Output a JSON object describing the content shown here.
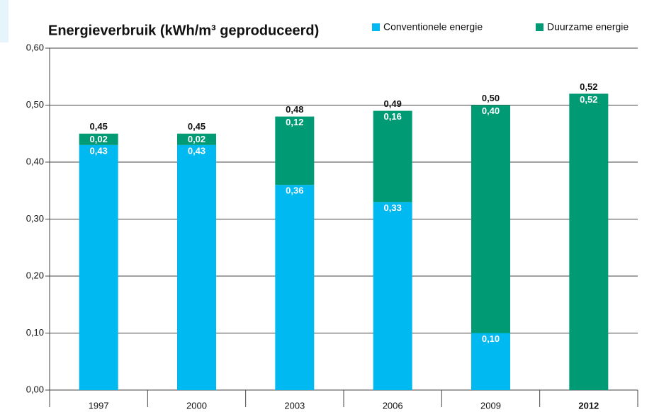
{
  "chart_data": {
    "type": "stacked_bar",
    "title": "Energieverbruik (kWh/m³ geproduceerd)",
    "categories": [
      "1997",
      "2000",
      "2003",
      "2006",
      "2009",
      "2012"
    ],
    "series": [
      {
        "name": "Conventionele energie",
        "color": "#00b9f0",
        "values": [
          0.43,
          0.43,
          0.36,
          0.33,
          0.1,
          0
        ],
        "value_labels": [
          "0,43",
          "0,43",
          "0,36",
          "0,33",
          "0,10",
          null
        ]
      },
      {
        "name": "Duurzame energie",
        "color": "#009a74",
        "values": [
          0.02,
          0.02,
          0.12,
          0.16,
          0.4,
          0.52
        ],
        "value_labels": [
          "0,02",
          "0,02",
          "0,12",
          "0,16",
          "0,40",
          "0,52"
        ]
      }
    ],
    "totals": [
      0.45,
      0.45,
      0.48,
      0.49,
      0.5,
      0.52
    ],
    "total_labels": [
      "0,45",
      "0,45",
      "0,48",
      "0,49",
      "0,50",
      "0,52"
    ],
    "ylim": [
      0,
      0.6
    ],
    "yticks": [
      {
        "value": 0,
        "label": "0,00"
      },
      {
        "value": 0.1,
        "label": "0,10"
      },
      {
        "value": 0.2,
        "label": "0,20"
      },
      {
        "value": 0.3,
        "label": "0,30"
      },
      {
        "value": 0.4,
        "label": "0,40"
      },
      {
        "value": 0.5,
        "label": "0,50"
      },
      {
        "value": 0.6,
        "label": "0,60"
      }
    ],
    "grid": true
  }
}
